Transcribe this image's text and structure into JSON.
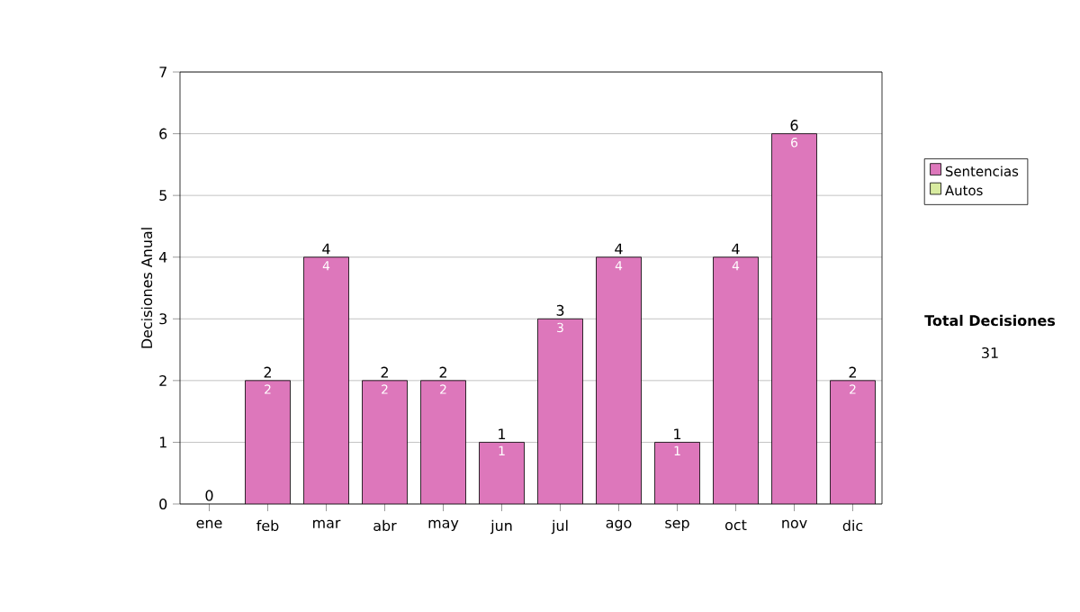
{
  "chart_data": {
    "type": "bar",
    "stacked": true,
    "ylabel": "Decisiones Anual",
    "categories": [
      "ene",
      "feb",
      "mar",
      "abr",
      "may",
      "jun",
      "jul",
      "ago",
      "sep",
      "oct",
      "nov",
      "dic"
    ],
    "series": [
      {
        "name": "Sentencias",
        "color": "#dd77bb",
        "values": [
          0,
          2,
          4,
          2,
          2,
          1,
          3,
          4,
          1,
          4,
          6,
          2
        ],
        "value_labels": [
          null,
          "2",
          "4",
          "2",
          "2",
          "1",
          "3",
          "4",
          "1",
          "4",
          "6",
          "2"
        ]
      },
      {
        "name": "Autos",
        "color": "#d8eba0",
        "values": [
          0,
          0,
          0,
          0,
          0,
          0,
          0,
          0,
          0,
          0,
          0,
          0
        ]
      }
    ],
    "totals": [
      "0",
      "2",
      "4",
      "2",
      "2",
      "1",
      "3",
      "4",
      "1",
      "4",
      "6",
      "2"
    ],
    "ylim": [
      0,
      7
    ],
    "yticks": [
      0,
      1,
      2,
      3,
      4,
      5,
      6,
      7
    ],
    "grid": "y",
    "legend": "right",
    "annotations": [
      "Total Decisiones",
      "31"
    ]
  }
}
